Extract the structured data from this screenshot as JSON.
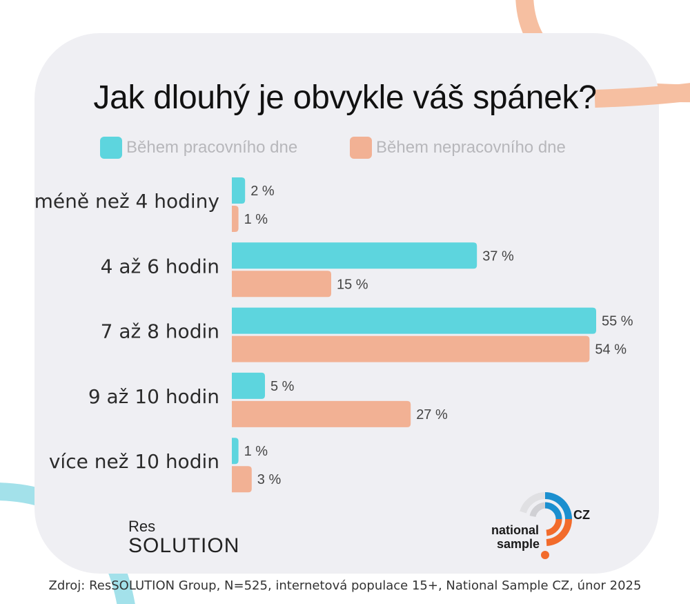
{
  "title": "Jak dlouhý je obvykle váš spánek?",
  "legend": [
    {
      "label": "Během pracovního dne",
      "color": "#5dd5de"
    },
    {
      "label": "Během nepracovního dne",
      "color": "#f2b194"
    }
  ],
  "chart_data": {
    "type": "bar",
    "orientation": "horizontal",
    "title": "Jak dlouhý je obvykle váš spánek?",
    "categories": [
      "méně než 4 hodiny",
      "4 až 6 hodin",
      "7 až 8 hodin",
      "9 až 10 hodin",
      "více než 10 hodin"
    ],
    "series": [
      {
        "name": "Během pracovního dne",
        "color": "#5dd5de",
        "values": [
          2,
          37,
          55,
          5,
          1
        ],
        "labels": [
          "2 %",
          "37 %",
          "55 %",
          "5 %",
          "1 %"
        ]
      },
      {
        "name": "Během nepracovního dne",
        "color": "#f2b194",
        "values": [
          1,
          15,
          54,
          27,
          3
        ],
        "labels": [
          "1 %",
          "15 %",
          "54 %",
          "27 %",
          "3 %"
        ]
      }
    ],
    "unit": "%",
    "legend_position": "top",
    "grid": false
  },
  "logos": {
    "res_small": "Res",
    "res_big": "SOLUTION",
    "ns_line1": "national",
    "ns_line2": "sample",
    "ns_country": "CZ"
  },
  "source": "Zdroj: ResSOLUTION Group, N=525, internetová populace 15+, National Sample CZ, únor 2025"
}
